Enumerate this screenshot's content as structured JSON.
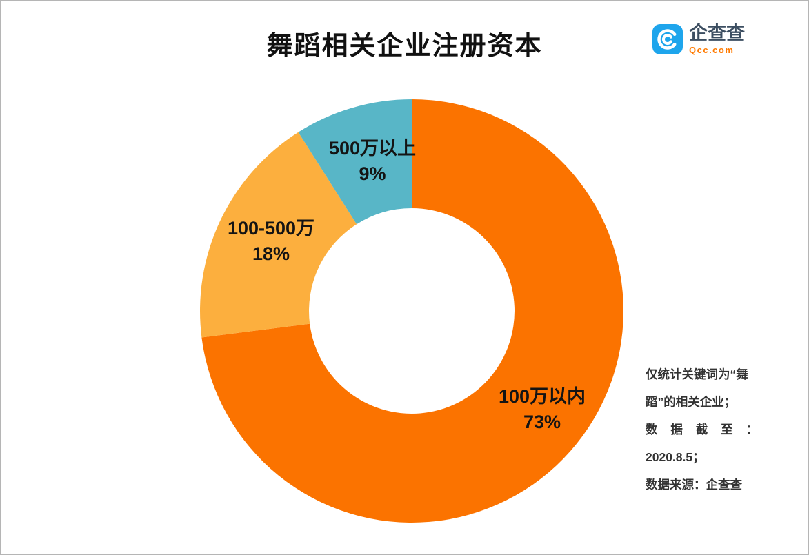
{
  "branding": {
    "name": "企查查",
    "domain": "Qcc.com",
    "icon": "qcc-spiral-icon",
    "brand_blue": "#1ea5ec",
    "brand_orange": "#ff7a00"
  },
  "chart_data": {
    "type": "pie",
    "subtype": "donut",
    "title": "舞蹈相关企业注册资本",
    "unit": "%",
    "start_angle_deg": -90,
    "direction": "clockwise",
    "legend": "none",
    "labels_on_chart": true,
    "segments": [
      {
        "label": "100万以内",
        "value": 73,
        "pct_label": "73%",
        "color": "#fb7300"
      },
      {
        "label": "100-500万",
        "value": 18,
        "pct_label": "18%",
        "color": "#fcaf3e"
      },
      {
        "label": "500万以上",
        "value": 9,
        "pct_label": "9%",
        "color": "#58b6c7"
      }
    ]
  },
  "note": {
    "lines": [
      "仅统计关键词为“舞",
      "蹈”的相关企业；",
      "数据截至：",
      "2020.8.5；",
      "数据来源：企查查"
    ]
  }
}
